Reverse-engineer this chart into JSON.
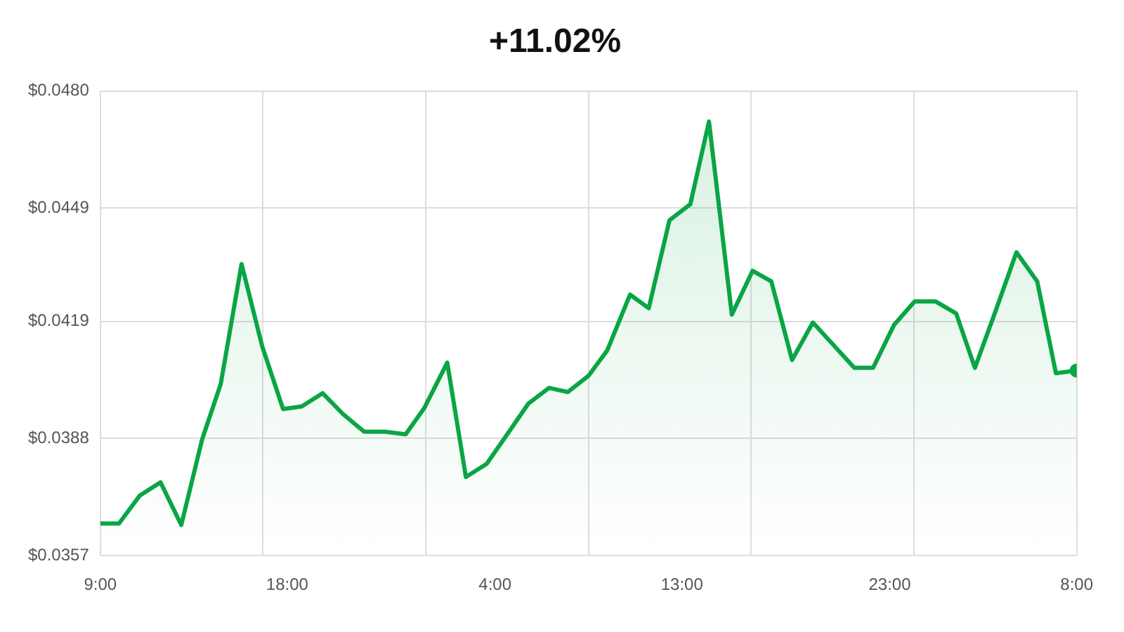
{
  "chart_data": {
    "type": "area",
    "title": "+11.02%",
    "x": [
      "--01-01T09:00",
      "--01-01T09:54",
      "--01-01T10:54",
      "--01-01T11:54",
      "--01-01T12:54",
      "--01-01T13:54",
      "--01-01T14:48",
      "--01-01T15:48",
      "--01-01T16:48",
      "--01-01T17:48",
      "--01-01T18:42",
      "--01-01T19:42",
      "--01-01T20:42",
      "--01-01T21:42",
      "--01-01T22:42",
      "--01-01T23:42",
      "--01-02T00:36",
      "--01-02T01:42",
      "--01-02T02:36",
      "--01-02T03:36",
      "--01-02T04:30",
      "--01-02T05:36",
      "--01-02T06:36",
      "--01-02T07:30",
      "--01-02T08:30",
      "--01-02T09:24",
      "--01-02T10:30",
      "--01-02T11:24",
      "--01-02T12:24",
      "--01-02T13:24",
      "--01-02T14:18",
      "--01-02T15:24",
      "--01-02T16:24",
      "--01-02T17:18",
      "--01-02T18:18",
      "--01-02T19:18",
      "--01-02T20:18",
      "--01-02T21:18",
      "--01-02T22:12",
      "--01-02T23:12",
      "--01-03T00:12",
      "--01-03T01:12",
      "--01-03T02:12",
      "--01-03T03:06",
      "--01-03T04:06",
      "--01-03T05:06",
      "--01-03T06:06",
      "--01-03T07:00",
      "--01-03T08:00"
    ],
    "series": [
      {
        "color": "#0aa544",
        "values": [
          0.03655,
          0.03655,
          0.03729,
          0.03764,
          0.03651,
          0.03877,
          0.04025,
          0.04342,
          0.04123,
          0.03958,
          0.03965,
          0.04,
          0.03944,
          0.03898,
          0.03898,
          0.03891,
          0.03961,
          0.04081,
          0.03778,
          0.03813,
          0.03884,
          0.03972,
          0.04014,
          0.04003,
          0.04046,
          0.04113,
          0.04261,
          0.04225,
          0.04458,
          0.045,
          0.04719,
          0.04208,
          0.04324,
          0.04296,
          0.04088,
          0.04187,
          0.04127,
          0.04067,
          0.04067,
          0.0418,
          0.04243,
          0.04243,
          0.04211,
          0.04067,
          0.04218,
          0.04373,
          0.04296,
          0.04053,
          0.0406
        ]
      }
    ],
    "xlim": [
      "--01-01T09:00",
      "--01-03T08:00"
    ],
    "xticks": [
      {
        "value": "--01-01T09:00",
        "label": "9:00"
      },
      {
        "value": "--01-01T16:50",
        "label": null
      },
      {
        "value": "--01-01T18:00",
        "label": "18:00"
      },
      {
        "value": "--01-02T00:40",
        "label": null
      },
      {
        "value": "--01-02T04:00",
        "label": "4:00"
      },
      {
        "value": "--01-02T08:30",
        "label": null
      },
      {
        "value": "--01-02T13:00",
        "label": "13:00"
      },
      {
        "value": "--01-02T16:20",
        "label": null
      },
      {
        "value": "--01-02T23:00",
        "label": "23:00"
      },
      {
        "value": "--01-03T00:10",
        "label": null
      },
      {
        "value": "--01-03T08:00",
        "label": "8:00"
      }
    ],
    "ylim": [
      0.0357,
      0.048
    ],
    "yticks": [
      {
        "value": 0.0357,
        "label": "$0.0357"
      },
      {
        "value": 0.0388,
        "label": "$0.0388"
      },
      {
        "value": 0.0419,
        "label": "$0.0419"
      },
      {
        "value": 0.0449,
        "label": "$0.0449"
      },
      {
        "value": 0.048,
        "label": "$0.0480"
      }
    ],
    "grid": true,
    "legend": false
  }
}
